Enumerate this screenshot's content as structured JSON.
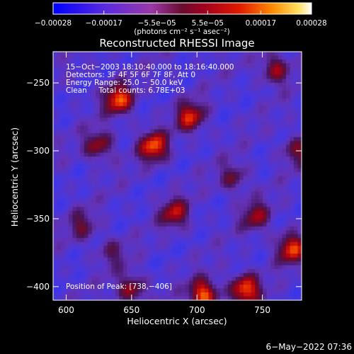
{
  "chart_data": {
    "type": "heatmap",
    "title": "Reconstructed RHESSI Image",
    "xlabel": "Heliocentric X (arcsec)",
    "ylabel": "Heliocentric Y (arcsec)",
    "xlim": [
      590,
      780
    ],
    "ylim": [
      -410,
      -227
    ],
    "x_ticks": [
      "600",
      "650",
      "700",
      "750"
    ],
    "x_tick_values": [
      600,
      650,
      700,
      750
    ],
    "y_ticks": [
      "−250",
      "−300",
      "−350",
      "−400"
    ],
    "y_tick_values": [
      -250,
      -300,
      -350,
      -400
    ],
    "colorbar": {
      "min": -0.00028,
      "max": 0.00028,
      "tick_labels": [
        "−0.00028",
        "−0.00017",
        "−5.5e−05",
        "5.5e−05",
        "0.00017",
        "0.00028"
      ],
      "tick_values": [
        -0.00028,
        -0.00017,
        -5.5e-05,
        5.5e-05,
        0.00017,
        0.00028
      ],
      "units_text": "(photons cm⁻² s⁻¹ asec⁻²)"
    },
    "info_lines": [
      "15−Oct−2003 18:10:40.000 to 18:16:40.000",
      "Detectors: 3F 4F 5F 6F 7F 8F, Att 0",
      "Energy Range: 25.0 − 50.0 keV",
      "Clean     Total counts: 6.78E+03"
    ],
    "peak_label": "Position of Peak: [738,−406]",
    "peak": [
      738,
      -406
    ],
    "sources": [
      {
        "x": 705,
        "y": -406,
        "value": 0.00028
      },
      {
        "x": 667,
        "y": -297,
        "value": 0.00026
      },
      {
        "x": 640,
        "y": -262,
        "value": 0.00026
      },
      {
        "x": 737,
        "y": -402,
        "value": 0.00027
      },
      {
        "x": 695,
        "y": -275,
        "value": 0.00022
      },
      {
        "x": 772,
        "y": -372,
        "value": 0.00024
      },
      {
        "x": 625,
        "y": -296,
        "value": 0.00018
      },
      {
        "x": 683,
        "y": -346,
        "value": 0.00019
      },
      {
        "x": 745,
        "y": -348,
        "value": 0.00016
      },
      {
        "x": 760,
        "y": -240,
        "value": 0.00018
      },
      {
        "x": 728,
        "y": -320,
        "value": 0.00013
      },
      {
        "x": 612,
        "y": -355,
        "value": 0.00012
      },
      {
        "x": 650,
        "y": -402,
        "value": 0.00018
      },
      {
        "x": 635,
        "y": -375,
        "value": 0.0001
      },
      {
        "x": 776,
        "y": -300,
        "value": 0.00014
      }
    ]
  },
  "footer": {
    "date": "6−May−2022 07:36"
  }
}
